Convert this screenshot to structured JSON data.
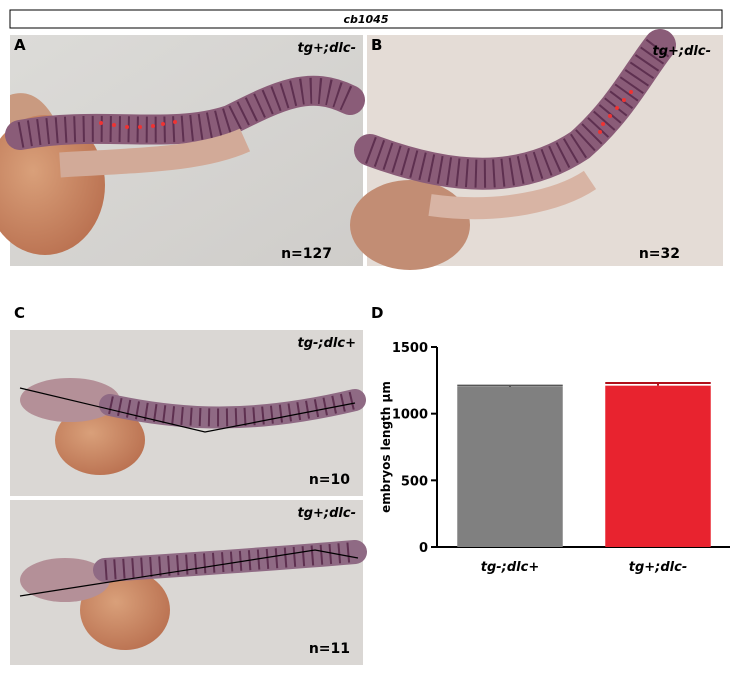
{
  "header": {
    "title": "cb1045"
  },
  "panels": [
    {
      "letter": "A",
      "genotype": "tg+;dlc-",
      "count": "n=127"
    },
    {
      "letter": "B",
      "genotype": "tg+;dlc-",
      "count": "n=32"
    },
    {
      "letter": "C",
      "genotype": "tg-;dlc+",
      "count": "n=10"
    },
    {
      "genotype": "tg+;dlc-",
      "count": "n=11"
    },
    {
      "letter": "D"
    }
  ],
  "chart_data": {
    "type": "bar",
    "ylabel": "embryos length µm",
    "categories": [
      "tg-;dlc+",
      "tg+;dlc-"
    ],
    "values": [
      1200,
      1210
    ],
    "errors": [
      10,
      20
    ],
    "colors": [
      "#808080",
      "#e8232f"
    ],
    "ylim": [
      0,
      1500
    ],
    "yticks": [
      0,
      500,
      1000,
      1500
    ]
  }
}
